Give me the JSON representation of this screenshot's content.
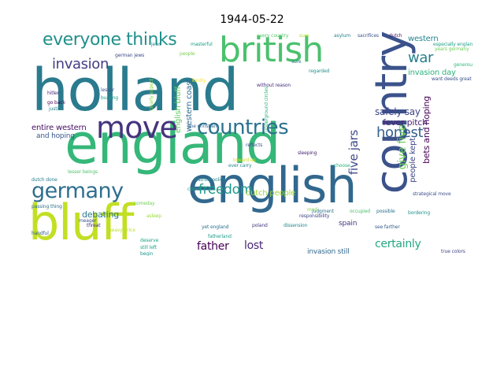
{
  "title": "1944-05-22",
  "words": [
    {
      "text": "holland",
      "color": "#2a7b8e"
    },
    {
      "text": "england",
      "color": "#35b779"
    },
    {
      "text": "english",
      "color": "#31688e"
    },
    {
      "text": "bluff",
      "color": "#c2df23"
    },
    {
      "text": "country",
      "color": "#3b528b"
    },
    {
      "text": "british",
      "color": "#4ac16d"
    },
    {
      "text": "move",
      "color": "#46337e"
    },
    {
      "text": "countries",
      "color": "#2c728e"
    },
    {
      "text": "germany",
      "color": "#2e6e8e"
    },
    {
      "text": "everyone thinks",
      "color": "#21908c"
    },
    {
      "text": "invasion",
      "color": "#433d84"
    },
    {
      "text": "war",
      "color": "#277f8e"
    },
    {
      "text": "honest",
      "color": "#355f8d"
    },
    {
      "text": "freedom",
      "color": "#1f988b"
    },
    {
      "text": "father",
      "color": "#440154"
    },
    {
      "text": "lost",
      "color": "#482677"
    },
    {
      "text": "certainly",
      "color": "#22a884"
    },
    {
      "text": "five jars",
      "color": "#3e4a89"
    },
    {
      "text": "give five",
      "color": "#6ece58"
    },
    {
      "text": "safely say",
      "color": "#404688"
    },
    {
      "text": "fever pitch",
      "color": "#481f70"
    },
    {
      "text": "invasion day",
      "color": "#2db27d"
    },
    {
      "text": "western",
      "color": "#25848e"
    },
    {
      "text": "people kept",
      "color": "#3f4889"
    },
    {
      "text": "bets and hoping",
      "color": "#440154"
    },
    {
      "text": "entire western",
      "color": "#471063"
    },
    {
      "text": "and hoping",
      "color": "#38588c"
    },
    {
      "text": "english bluff",
      "color": "#5ec962"
    },
    {
      "text": "western coast",
      "color": "#2f6c8e"
    },
    {
      "text": "dutch people",
      "color": "#a0da39"
    },
    {
      "text": "debating",
      "color": "#2a788e"
    },
    {
      "text": "spain",
      "color": "#453781"
    },
    {
      "text": "invasion still",
      "color": "#31688e"
    },
    {
      "text": "fatherland",
      "color": "#1f9e89"
    },
    {
      "text": "dutch",
      "color": "#48186a"
    },
    {
      "text": "asylum",
      "color": "#26828e"
    },
    {
      "text": "sacrifices",
      "color": "#3b528b"
    },
    {
      "text": "every country",
      "color": "#52c569"
    },
    {
      "text": "people",
      "color": "#7ad151"
    },
    {
      "text": "sure",
      "color": "#b5de2b"
    },
    {
      "text": "masterful",
      "color": "#1fa187"
    },
    {
      "text": "jews",
      "color": "#24868e"
    },
    {
      "text": "judgment",
      "color": "#2c728e"
    },
    {
      "text": "years germany",
      "color": "#6ece58"
    },
    {
      "text": "german jews",
      "color": "#3e4989"
    },
    {
      "text": "kindly",
      "color": "#fde725"
    },
    {
      "text": "one christian",
      "color": "#32648e"
    },
    {
      "text": "without reason",
      "color": "#46307e"
    },
    {
      "text": "underground circles",
      "color": "#2fb47c"
    },
    {
      "text": "go back",
      "color": "#440154"
    },
    {
      "text": "justice",
      "color": "#26828e"
    },
    {
      "text": "burying",
      "color": "#1e9b8a"
    },
    {
      "text": "lesser",
      "color": "#3a548c"
    },
    {
      "text": "hitler",
      "color": "#482475"
    },
    {
      "text": "clearly expect",
      "color": "#8fd744"
    },
    {
      "text": "regarded",
      "color": "#21918c"
    },
    {
      "text": "still left",
      "color": "#20a386"
    },
    {
      "text": "strategical move",
      "color": "#3d4e8a"
    },
    {
      "text": "heavy price",
      "color": "#b8de29"
    },
    {
      "text": "yet england",
      "color": "#2d708e"
    },
    {
      "text": "lesser beings",
      "color": "#4ec36b"
    },
    {
      "text": "ostrich policy",
      "color": "#23888e"
    },
    {
      "text": "see farther",
      "color": "#355e8d"
    },
    {
      "text": "true colors",
      "color": "#414487"
    },
    {
      "text": "bordering",
      "color": "#1f948c"
    },
    {
      "text": "someday",
      "color": "#70cf57"
    },
    {
      "text": "passing thing",
      "color": "#2e6f8e"
    },
    {
      "text": "meager",
      "color": "#3c508b"
    },
    {
      "text": "threat",
      "color": "#472c7a"
    },
    {
      "text": "asleep",
      "color": "#9bd93c"
    },
    {
      "text": "deserve",
      "color": "#20a486"
    },
    {
      "text": "begin",
      "color": "#1f968b"
    },
    {
      "text": "dutch done",
      "color": "#27808e"
    },
    {
      "text": "handful",
      "color": "#34618d"
    },
    {
      "text": "occupied",
      "color": "#4ac16d"
    },
    {
      "text": "sleeping",
      "color": "#482173"
    },
    {
      "text": "toward us",
      "color": "#d0e11c"
    },
    {
      "text": "ever carry",
      "color": "#25858e"
    },
    {
      "text": "reflects",
      "color": "#38588c"
    },
    {
      "text": "choose",
      "color": "#2db27d"
    },
    {
      "text": "generous help",
      "color": "#35b779"
    },
    {
      "text": "want deeds great",
      "color": "#3b528b"
    },
    {
      "text": "especially england",
      "color": "#1fa088"
    },
    {
      "text": "mad",
      "color": "#7fd34e"
    },
    {
      "text": "poland",
      "color": "#43377f"
    },
    {
      "text": "sure",
      "color": "#2a788e"
    },
    {
      "text": "dissension",
      "color": "#24878e"
    },
    {
      "text": "responsibility",
      "color": "#3f4788"
    },
    {
      "text": "colors",
      "color": "#21a685"
    },
    {
      "text": "possible",
      "color": "#2c728e"
    }
  ]
}
